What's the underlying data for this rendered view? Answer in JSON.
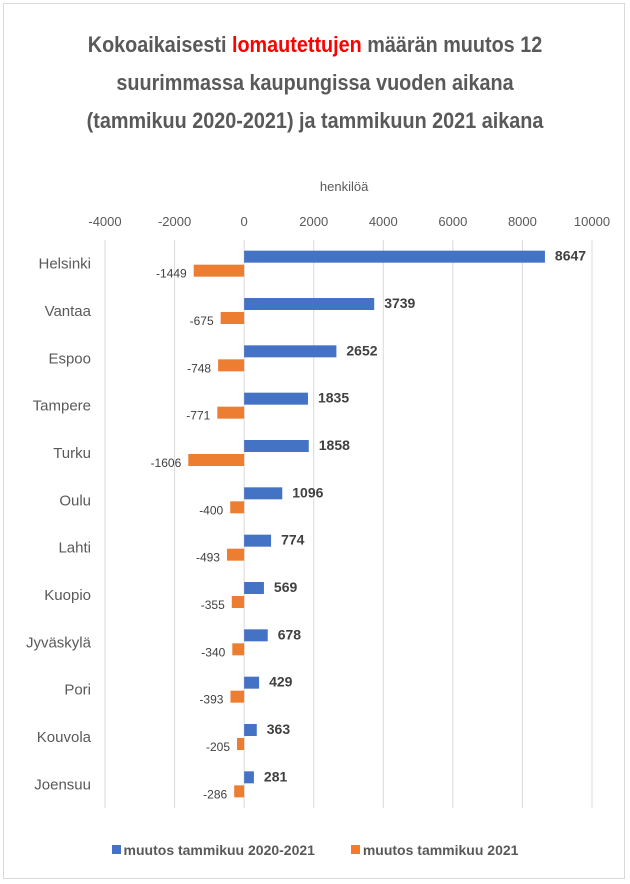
{
  "title": {
    "part1": "Kokoaikaisesti ",
    "highlight": "lomautettujen",
    "part2": " määrän muutos 12 suurimmassa kaupungissa vuoden aikana (tammikuu 2020-2021) ja tammikuun 2021 aikana"
  },
  "colors": {
    "series1": "#4472c4",
    "series2": "#ed7d31",
    "highlight": "#ff0000",
    "grid": "#d9d9d9"
  },
  "chart_data": {
    "type": "bar",
    "orientation": "horizontal",
    "title": "Kokoaikaisesti lomautettujen määrän muutos 12 suurimmassa kaupungissa vuoden aikana (tammikuu 2020-2021) ja tammikuun 2021 aikana",
    "xlabel": "henkilöä",
    "ylabel": "",
    "xlim": [
      -4000,
      10000
    ],
    "xticks": [
      -4000,
      -2000,
      0,
      2000,
      4000,
      6000,
      8000,
      10000
    ],
    "grid": true,
    "legend_position": "bottom",
    "categories": [
      "Helsinki",
      "Vantaa",
      "Espoo",
      "Tampere",
      "Turku",
      "Oulu",
      "Lahti",
      "Kuopio",
      "Jyväskylä",
      "Pori",
      "Kouvola",
      "Joensuu"
    ],
    "series": [
      {
        "name": "muutos tammikuu 2020-2021",
        "values": [
          8647,
          3739,
          2652,
          1835,
          1858,
          1096,
          774,
          569,
          678,
          429,
          363,
          281
        ]
      },
      {
        "name": "muutos tammikuu 2021",
        "values": [
          -1449,
          -675,
          -748,
          -771,
          -1606,
          -400,
          -493,
          -355,
          -340,
          -393,
          -205,
          -286
        ]
      }
    ]
  }
}
